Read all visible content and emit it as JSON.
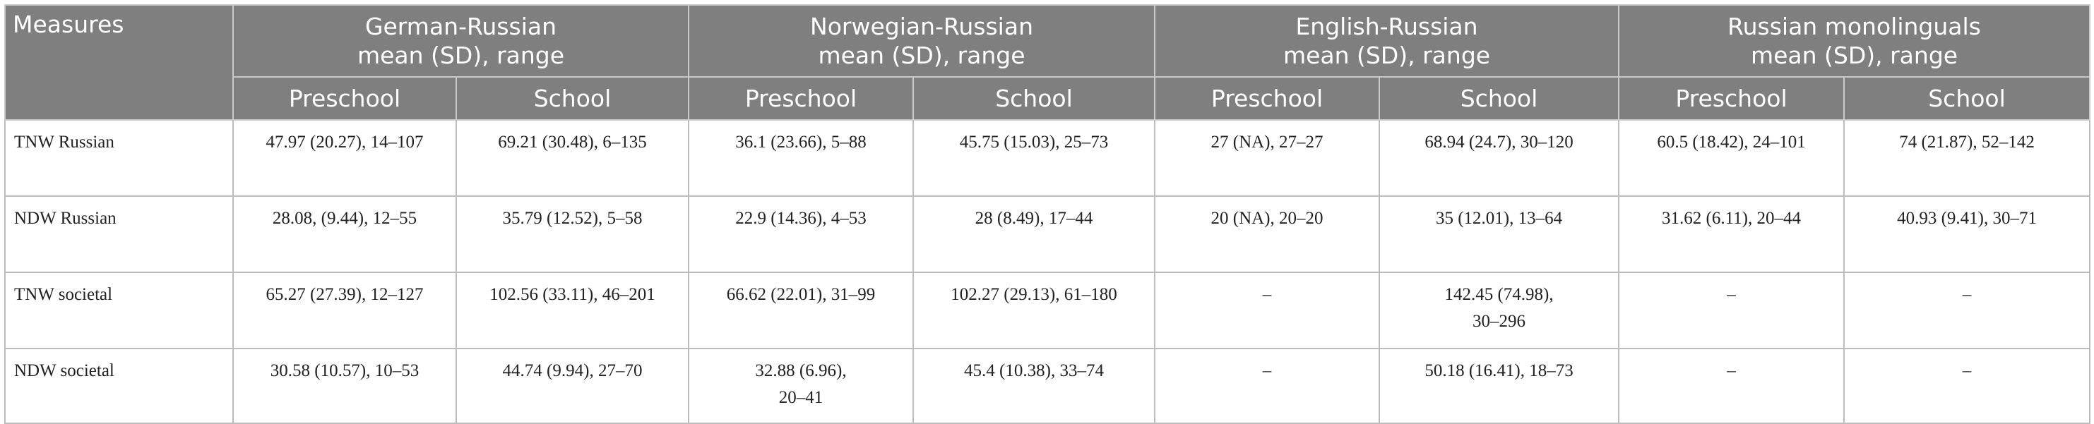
{
  "header": {
    "measures": "Measures",
    "groups": [
      {
        "line1": "German-Russian",
        "line2": "mean (SD), range"
      },
      {
        "line1": "Norwegian-Russian",
        "line2": "mean (SD), range"
      },
      {
        "line1": "English-Russian",
        "line2": "mean (SD), range"
      },
      {
        "line1": "Russian monolinguals",
        "line2": "mean (SD), range"
      }
    ],
    "sub": [
      "Preschool",
      "School",
      "Preschool",
      "School",
      "Preschool",
      "School",
      "Preschool",
      "School"
    ]
  },
  "rows": [
    {
      "measure": "TNW Russian",
      "cells": [
        [
          "47.97 (20.27), 14–107"
        ],
        [
          "69.21 (30.48), 6–135"
        ],
        [
          "36.1 (23.66), 5–88"
        ],
        [
          "45.75 (15.03), 25–73"
        ],
        [
          "27 (NA), 27–27"
        ],
        [
          "68.94 (24.7), 30–120"
        ],
        [
          "60.5 (18.42), 24–101"
        ],
        [
          "74 (21.87), 52–142"
        ]
      ]
    },
    {
      "measure": "NDW Russian",
      "cells": [
        [
          "28.08, (9.44), 12–55"
        ],
        [
          "35.79 (12.52), 5–58"
        ],
        [
          "22.9 (14.36), 4–53"
        ],
        [
          "28 (8.49), 17–44"
        ],
        [
          "20 (NA), 20–20"
        ],
        [
          "35 (12.01), 13–64"
        ],
        [
          "31.62 (6.11), 20–44"
        ],
        [
          "40.93 (9.41), 30–71"
        ]
      ]
    },
    {
      "measure": "TNW societal",
      "cells": [
        [
          "65.27 (27.39), 12–127"
        ],
        [
          "102.56 (33.11), 46–201"
        ],
        [
          "66.62 (22.01), 31–99"
        ],
        [
          "102.27 (29.13), 61–180"
        ],
        [
          "–"
        ],
        [
          "142.45 (74.98),",
          "30–296"
        ],
        [
          "–"
        ],
        [
          "–"
        ]
      ]
    },
    {
      "measure": "NDW societal",
      "cells": [
        [
          "30.58 (10.57), 10–53"
        ],
        [
          "44.74 (9.94), 27–70"
        ],
        [
          "32.88 (6.96),",
          "20–41"
        ],
        [
          "45.4 (10.38), 33–74"
        ],
        [
          "–"
        ],
        [
          "50.18 (16.41), 18–73"
        ],
        [
          "–"
        ],
        [
          "–"
        ]
      ]
    }
  ]
}
